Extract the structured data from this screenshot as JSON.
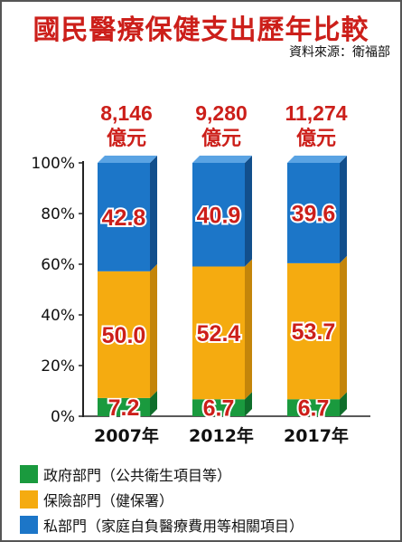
{
  "title": "國民醫療保健支出歷年比較",
  "source": "資料來源：衛福部",
  "colors": {
    "gov": "#1a9a3e",
    "gov_side": "#0f6e2b",
    "ins": "#f5ab10",
    "ins_side": "#c4850a",
    "pri": "#1c76c8",
    "pri_side": "#124f8c",
    "value_text": "#cc1f1a"
  },
  "chart_data": {
    "type": "bar",
    "stacked": true,
    "normalized": true,
    "categories": [
      "2007年",
      "2012年",
      "2017年"
    ],
    "totals": [
      {
        "amount": "8,146",
        "unit": "億元"
      },
      {
        "amount": "9,280",
        "unit": "億元"
      },
      {
        "amount": "11,274",
        "unit": "億元"
      }
    ],
    "series": [
      {
        "name": "政府部門（公共衛生項目等）",
        "key": "gov",
        "values": [
          7.2,
          6.7,
          6.7
        ]
      },
      {
        "name": "保險部門（健保署）",
        "key": "ins",
        "values": [
          50.0,
          52.4,
          53.7
        ]
      },
      {
        "name": "私部門（家庭自負醫療費用等相關項目）",
        "key": "pri",
        "values": [
          42.8,
          40.9,
          39.6
        ]
      }
    ],
    "ylim": [
      0,
      100
    ],
    "yticks": [
      "0%",
      "20%",
      "40%",
      "60%",
      "80%",
      "100%"
    ],
    "grid": false,
    "legend_position": "bottom"
  }
}
